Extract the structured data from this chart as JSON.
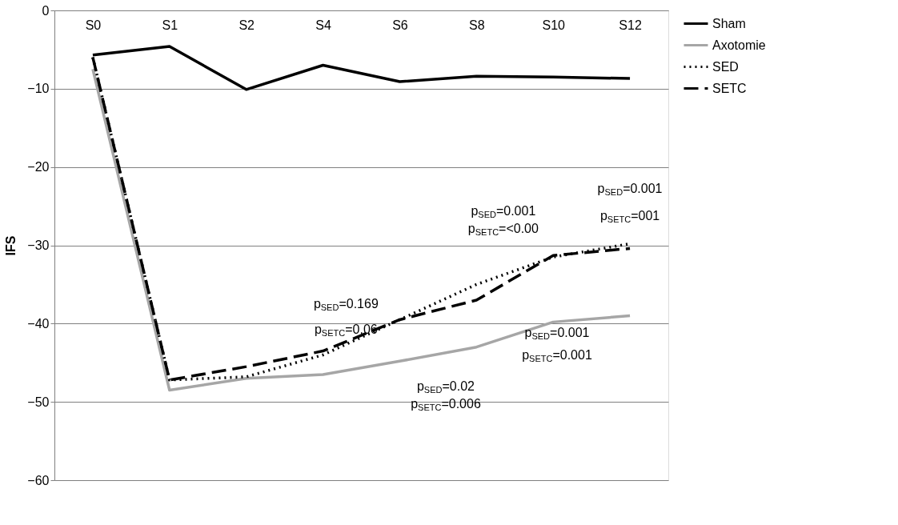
{
  "chart_data": {
    "type": "line",
    "ylabel": "IFS",
    "categories": [
      "S0",
      "S1",
      "S2",
      "S4",
      "S6",
      "S8",
      "S10",
      "S12"
    ],
    "ylim": [
      -60,
      0
    ],
    "yticks": [
      -60,
      -50,
      -40,
      -30,
      -20,
      -10,
      0
    ],
    "grid": "y",
    "legend": "right",
    "marker": "none",
    "series": [
      {
        "name": "Sham",
        "color": "#000000",
        "line_style": "solid",
        "values": [
          -5.7,
          -4.6,
          -10.1,
          -7.0,
          -9.1,
          -8.4,
          -8.5,
          -8.7
        ]
      },
      {
        "name": "Axotomie",
        "color": "#a6a6a6",
        "line_style": "solid",
        "values": [
          -7.5,
          -48.5,
          -47.0,
          -46.5,
          -44.8,
          -43.0,
          -39.8,
          -39.0
        ]
      },
      {
        "name": "SED",
        "color": "#000000",
        "line_style": "dotted",
        "values": [
          -6.0,
          -47.2,
          -46.8,
          -44.0,
          -39.5,
          -35.0,
          -31.5,
          -29.8
        ]
      },
      {
        "name": "SETC",
        "color": "#000000",
        "line_style": "dashed",
        "values": [
          -6.0,
          -47.2,
          -45.5,
          -43.5,
          -39.5,
          -37.0,
          -31.3,
          -30.4
        ]
      }
    ],
    "annotations": [
      "p$_{SED}$=0.169",
      "p$_{SETC}$=0.06",
      "p$_{SED}$=0.001",
      "p$_{SETC}$=<0.00",
      "p$_{SED}$=0.001",
      "p$_{SETC}$=001",
      "p$_{SED}$=0.02",
      "p$_{SETC}$=0.006",
      "p$_{SED}$=0.001",
      "p$_{SETC}$=0.001"
    ]
  }
}
